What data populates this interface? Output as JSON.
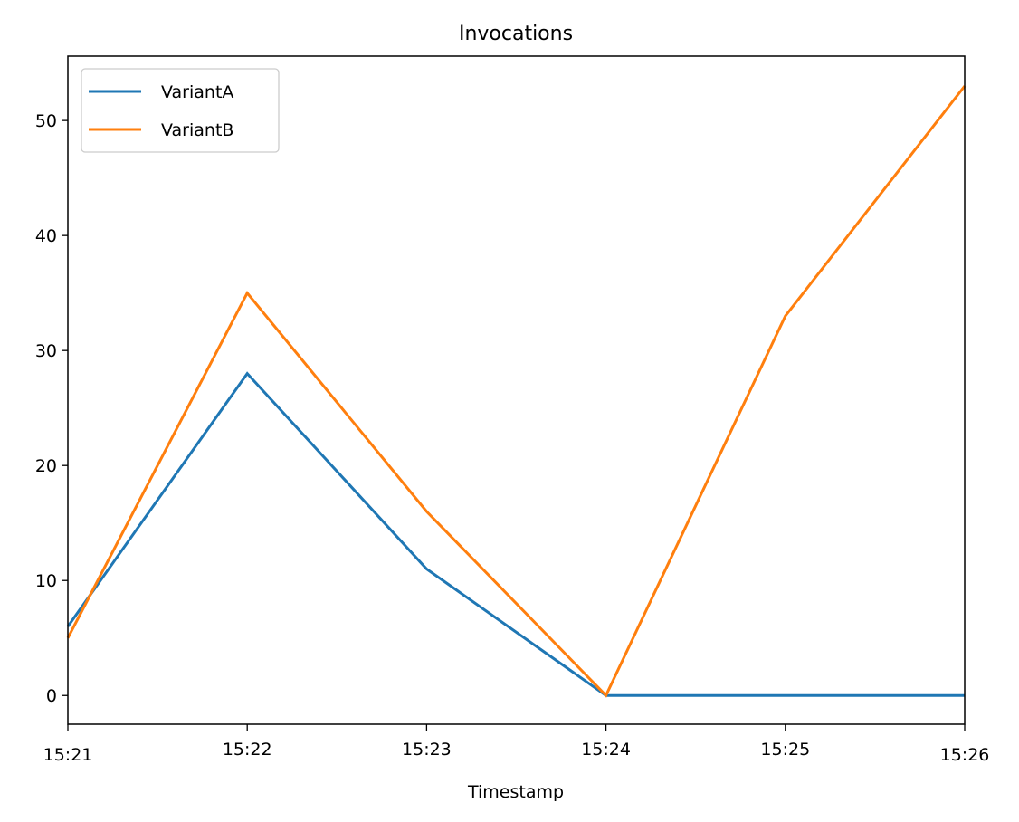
{
  "chart_data": {
    "type": "line",
    "title": "Invocations",
    "xlabel": "Timestamp",
    "ylabel": "",
    "x": [
      "15:21",
      "15:22",
      "15:23",
      "15:24",
      "15:25",
      "15:26"
    ],
    "xlim": [
      "15:21",
      "15:26"
    ],
    "ylim": [
      -2.5,
      55.6
    ],
    "yticks": [
      0,
      10,
      20,
      30,
      40,
      50
    ],
    "grid": false,
    "legend_position": "upper-left",
    "series": [
      {
        "name": "VariantA",
        "color": "#1f77b4",
        "values": [
          6,
          28,
          11,
          0,
          0,
          0
        ]
      },
      {
        "name": "VariantB",
        "color": "#ff7f0e",
        "values": [
          5,
          35,
          16,
          0,
          33,
          53
        ]
      }
    ]
  }
}
